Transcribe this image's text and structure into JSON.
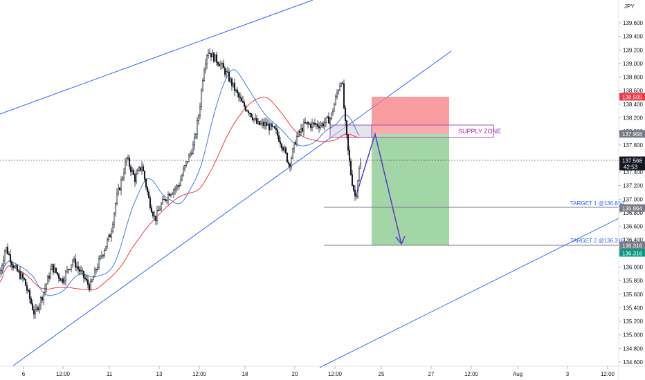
{
  "chart_data": {
    "type": "candlestick",
    "currency": "JPY",
    "y_axis": {
      "ticks": [
        "139.600",
        "139.400",
        "139.200",
        "139.000",
        "138.800",
        "138.600",
        "138.400",
        "138.200",
        "138.000",
        "137.800",
        "137.600",
        "137.400",
        "137.200",
        "137.000",
        "136.800",
        "136.600",
        "136.400",
        "136.200",
        "136.000",
        "135.800",
        "135.600",
        "135.400",
        "135.200",
        "135.000",
        "134.800",
        "134.600"
      ],
      "range": [
        134.5,
        139.85
      ]
    },
    "x_axis": {
      "ticks": [
        "6",
        "12:00",
        "11",
        "13",
        "12:00",
        "18",
        "20",
        "12:00",
        "25",
        "27",
        "12:00",
        "Aug",
        "3",
        "12:00"
      ]
    },
    "price_badges": [
      {
        "id": "supply-top",
        "value": "138.505",
        "bg": "#f23645",
        "fg": "#ffffff"
      },
      {
        "id": "supply-bottom",
        "value": "137.958",
        "bg": "#787b86",
        "fg": "#ffffff"
      },
      {
        "id": "current",
        "value": "137.568",
        "sub": "42:53",
        "bg": "#131722",
        "fg": "#ffffff"
      },
      {
        "id": "target1",
        "value": "136.864",
        "bg": "#787b86",
        "fg": "#ffffff"
      },
      {
        "id": "target2",
        "value": "136.316",
        "bg": "#787b86",
        "fg": "#ffffff"
      },
      {
        "id": "stop",
        "value": "136.316",
        "bg": "#089981",
        "fg": "#ffffff"
      }
    ],
    "annotations": {
      "supply_zone": "SUPPLY ZONE",
      "target1": "TARGET 1 @136.864",
      "target2": "TARGET 2 @136.316"
    },
    "colors": {
      "trendline": "#2962ff",
      "ma_fast": "#3b7ddd",
      "ma_slow": "#f23645",
      "risk_zone": "#f77c80",
      "reward_zone": "#66bb6a",
      "supply_box": "#ab47bc",
      "arrow": "#5c35cc",
      "candle": "#131722"
    }
  }
}
